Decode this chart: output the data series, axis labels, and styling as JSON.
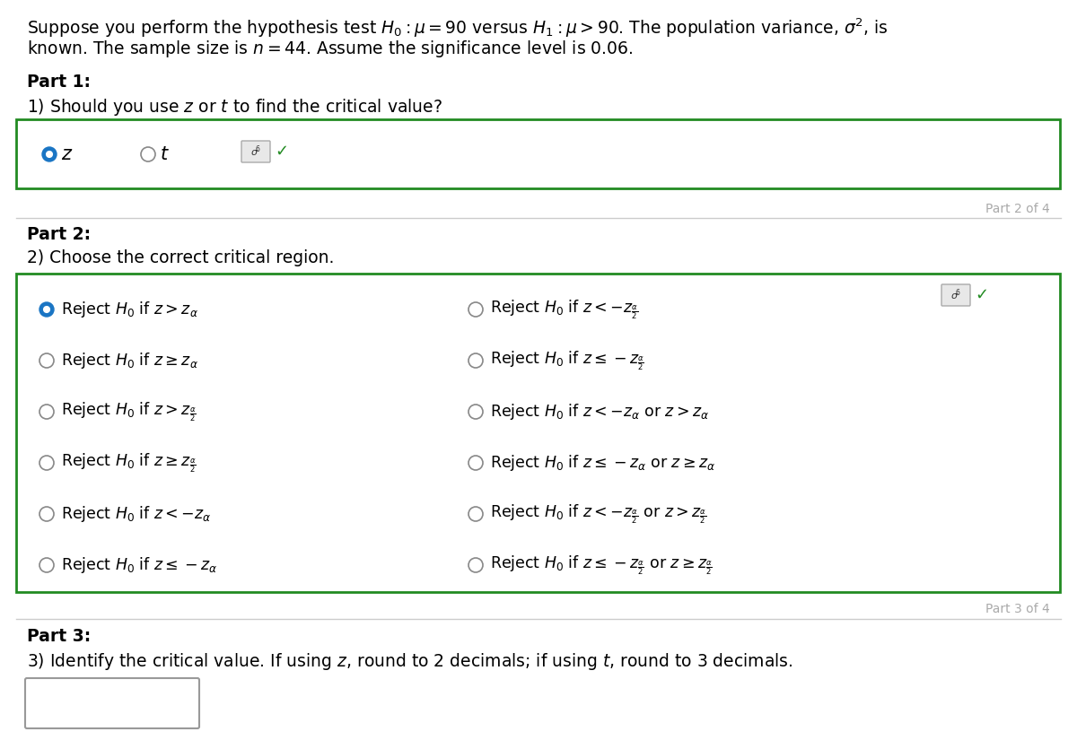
{
  "bg_color": "#ffffff",
  "text_color": "#000000",
  "green_color": "#228B22",
  "blue_color": "#1a75c4",
  "gray_radio": "#888888",
  "left_options": [
    "Reject $H_0$ if $z > z_\\alpha$",
    "Reject $H_0$ if $z \\geq z_\\alpha$",
    "Reject $H_0$ if $z > z_{\\frac{\\alpha}{2}}$",
    "Reject $H_0$ if $z \\geq z_{\\frac{\\alpha}{2}}$",
    "Reject $H_0$ if $z < -z_\\alpha$",
    "Reject $H_0$ if $z \\leq -z_\\alpha$"
  ],
  "right_options": [
    "Reject $H_0$ if $z < -z_{\\frac{\\alpha}{2}}$",
    "Reject $H_0$ if $z \\leq -z_{\\frac{\\alpha}{2}}$",
    "Reject $H_0$ if $z < -z_\\alpha$ or $z > z_\\alpha$",
    "Reject $H_0$ if $z \\leq -z_\\alpha$ or $z \\geq z_\\alpha$",
    "Reject $H_0$ if $z < -z_{\\frac{\\alpha}{2}}$ or $z > z_{\\frac{\\alpha}{2}}$",
    "Reject $H_0$ if $z \\leq -z_{\\frac{\\alpha}{2}}$ or $z \\geq z_{\\frac{\\alpha}{2}}$"
  ],
  "intro_line1": "Suppose you perform the hypothesis test $H_0: \\mu = 90$ versus $H_1: \\mu > 90$. The population variance, $\\sigma^2$, is",
  "intro_line2": "known. The sample size is $n = 44$. Assume the significance level is $0.06$.",
  "part1_label": "Part 1:",
  "part1_q": "1) Should you use $z$ or $t$ to find the critical value?",
  "part2_label": "Part 2:",
  "part2_q": "2) Choose the correct critical region.",
  "part3_label": "Part 3:",
  "part3_q": "3) Identify the critical value. If using $z$, round to 2 decimals; if using $t$, round to 3 decimals.",
  "part2of4": "Part 2 of 4",
  "part3of4": "Part 3 of 4"
}
